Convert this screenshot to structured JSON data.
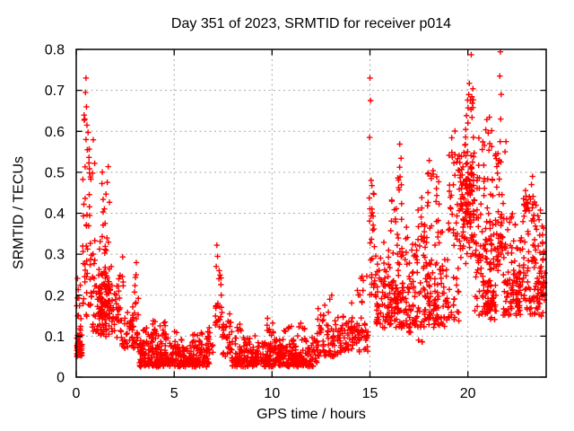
{
  "chart_data": {
    "type": "scatter",
    "title": "Day 351 of 2023, SRMTID for receiver p014",
    "xlabel": "GPS time / hours",
    "ylabel": "SRMTID / TECUs",
    "xlim": [
      0,
      24
    ],
    "ylim": [
      0,
      0.8
    ],
    "x_ticks": [
      {
        "v": 0,
        "label": "0"
      },
      {
        "v": 5,
        "label": "5"
      },
      {
        "v": 10,
        "label": "10"
      },
      {
        "v": 15,
        "label": "15"
      },
      {
        "v": 20,
        "label": "20"
      }
    ],
    "y_ticks": [
      {
        "v": 0.0,
        "label": "0"
      },
      {
        "v": 0.1,
        "label": "0.1"
      },
      {
        "v": 0.2,
        "label": "0.2"
      },
      {
        "v": 0.3,
        "label": "0.3"
      },
      {
        "v": 0.4,
        "label": "0.4"
      },
      {
        "v": 0.5,
        "label": "0.5"
      },
      {
        "v": 0.6,
        "label": "0.6"
      },
      {
        "v": 0.7,
        "label": "0.7"
      },
      {
        "v": 0.8,
        "label": "0.8"
      }
    ],
    "grid": true,
    "legend": "none",
    "marker": {
      "shape": "plus",
      "color": "#ff0000",
      "size": 7
    },
    "colors": {
      "background": "#ffffff",
      "axis": "#000000",
      "grid": "#a8a8a8",
      "text": "#000000",
      "points": "#ff0000"
    },
    "point_clusters": [
      {
        "x0": 0.02,
        "x1": 0.3,
        "y0": 0.05,
        "y1": 0.14,
        "n": 50,
        "bias": "low"
      },
      {
        "x0": 0.02,
        "x1": 0.3,
        "y0": 0.14,
        "y1": 0.26,
        "n": 10,
        "bias": "low"
      },
      {
        "x0": 0.3,
        "x1": 0.78,
        "y0": 0.14,
        "y1": 0.32,
        "n": 26,
        "bias": "uniform"
      },
      {
        "x0": 0.33,
        "x1": 0.72,
        "y0": 0.32,
        "y1": 0.5,
        "n": 13,
        "bias": "uniform"
      },
      {
        "x0": 0.38,
        "x1": 0.68,
        "y0": 0.5,
        "y1": 0.65,
        "n": 7,
        "bias": "uniform"
      },
      {
        "x0": 0.6,
        "x1": 0.95,
        "y0": 0.45,
        "y1": 0.6,
        "n": 6,
        "bias": "uniform"
      },
      {
        "x0": 0.75,
        "x1": 1.28,
        "y0": 0.1,
        "y1": 0.35,
        "n": 40,
        "bias": "low"
      },
      {
        "x0": 1.28,
        "x1": 1.7,
        "y0": 0.3,
        "y1": 0.52,
        "n": 18,
        "bias": "uniform"
      },
      {
        "x0": 1.1,
        "x1": 2.25,
        "y0": 0.08,
        "y1": 0.28,
        "n": 130,
        "bias": "center"
      },
      {
        "x0": 2.25,
        "x1": 3.2,
        "y0": 0.07,
        "y1": 0.2,
        "n": 60,
        "bias": "low"
      },
      {
        "x0": 2.35,
        "x1": 2.45,
        "y0": 0.22,
        "y1": 0.31,
        "n": 4,
        "bias": "uniform"
      },
      {
        "x0": 2.95,
        "x1": 3.1,
        "y0": 0.2,
        "y1": 0.285,
        "n": 5,
        "bias": "uniform"
      },
      {
        "x0": 3.2,
        "x1": 6.8,
        "y0": 0.025,
        "y1": 0.09,
        "n": 320,
        "bias": "low"
      },
      {
        "x0": 3.25,
        "x1": 3.9,
        "y0": 0.08,
        "y1": 0.13,
        "n": 15,
        "bias": "low"
      },
      {
        "x0": 3.9,
        "x1": 4.7,
        "y0": 0.09,
        "y1": 0.15,
        "n": 28,
        "bias": "low"
      },
      {
        "x0": 5.0,
        "x1": 6.6,
        "y0": 0.085,
        "y1": 0.12,
        "n": 12,
        "bias": "low"
      },
      {
        "x0": 6.6,
        "x1": 7.05,
        "y0": 0.06,
        "y1": 0.15,
        "n": 20,
        "bias": "low"
      },
      {
        "x0": 7.05,
        "x1": 7.45,
        "y0": 0.12,
        "y1": 0.28,
        "n": 22,
        "bias": "low"
      },
      {
        "x0": 7.45,
        "x1": 7.95,
        "y0": 0.05,
        "y1": 0.16,
        "n": 30,
        "bias": "low"
      },
      {
        "x0": 7.95,
        "x1": 12.3,
        "y0": 0.025,
        "y1": 0.105,
        "n": 380,
        "bias": "low"
      },
      {
        "x0": 8.2,
        "x1": 8.5,
        "y0": 0.1,
        "y1": 0.13,
        "n": 5,
        "bias": "uniform"
      },
      {
        "x0": 9.7,
        "x1": 10.1,
        "y0": 0.1,
        "y1": 0.15,
        "n": 10,
        "bias": "low"
      },
      {
        "x0": 10.6,
        "x1": 11.0,
        "y0": 0.1,
        "y1": 0.125,
        "n": 5,
        "bias": "uniform"
      },
      {
        "x0": 11.3,
        "x1": 11.7,
        "y0": 0.1,
        "y1": 0.135,
        "n": 6,
        "bias": "uniform"
      },
      {
        "x0": 12.3,
        "x1": 13.4,
        "y0": 0.05,
        "y1": 0.19,
        "n": 70,
        "bias": "low"
      },
      {
        "x0": 13.4,
        "x1": 14.9,
        "y0": 0.06,
        "y1": 0.2,
        "n": 90,
        "bias": "low"
      },
      {
        "x0": 14.35,
        "x1": 14.85,
        "y0": 0.2,
        "y1": 0.26,
        "n": 8,
        "bias": "uniform"
      },
      {
        "x0": 14.95,
        "x1": 15.3,
        "y0": 0.18,
        "y1": 0.47,
        "n": 30,
        "bias": "uniform"
      },
      {
        "x0": 15.3,
        "x1": 16.35,
        "y0": 0.12,
        "y1": 0.35,
        "n": 95,
        "bias": "low"
      },
      {
        "x0": 16.05,
        "x1": 16.35,
        "y0": 0.35,
        "y1": 0.44,
        "n": 8,
        "bias": "uniform"
      },
      {
        "x0": 16.35,
        "x1": 16.85,
        "y0": 0.12,
        "y1": 0.45,
        "n": 55,
        "bias": "low"
      },
      {
        "x0": 16.4,
        "x1": 16.7,
        "y0": 0.45,
        "y1": 0.575,
        "n": 9,
        "bias": "uniform"
      },
      {
        "x0": 16.85,
        "x1": 17.45,
        "y0": 0.1,
        "y1": 0.38,
        "n": 55,
        "bias": "low"
      },
      {
        "x0": 17.45,
        "x1": 17.65,
        "y0": 0.3,
        "y1": 0.44,
        "n": 10,
        "bias": "uniform"
      },
      {
        "x0": 17.45,
        "x1": 17.7,
        "y0": 0.085,
        "y1": 0.3,
        "n": 12,
        "bias": "low"
      },
      {
        "x0": 17.7,
        "x1": 18.7,
        "y0": 0.12,
        "y1": 0.45,
        "n": 110,
        "bias": "low"
      },
      {
        "x0": 17.95,
        "x1": 18.25,
        "y0": 0.45,
        "y1": 0.53,
        "n": 8,
        "bias": "uniform"
      },
      {
        "x0": 18.3,
        "x1": 18.55,
        "y0": 0.42,
        "y1": 0.5,
        "n": 6,
        "bias": "uniform"
      },
      {
        "x0": 18.7,
        "x1": 19.55,
        "y0": 0.12,
        "y1": 0.33,
        "n": 45,
        "bias": "low"
      },
      {
        "x0": 19.0,
        "x1": 19.55,
        "y0": 0.33,
        "y1": 0.62,
        "n": 30,
        "bias": "uniform"
      },
      {
        "x0": 19.55,
        "x1": 20.35,
        "y0": 0.25,
        "y1": 0.62,
        "n": 130,
        "bias": "center"
      },
      {
        "x0": 19.9,
        "x1": 20.3,
        "y0": 0.62,
        "y1": 0.72,
        "n": 14,
        "bias": "uniform"
      },
      {
        "x0": 20.35,
        "x1": 21.35,
        "y0": 0.15,
        "y1": 0.55,
        "n": 120,
        "bias": "low"
      },
      {
        "x0": 20.5,
        "x1": 21.25,
        "y0": 0.55,
        "y1": 0.645,
        "n": 12,
        "bias": "uniform"
      },
      {
        "x0": 20.9,
        "x1": 21.5,
        "y0": 0.12,
        "y1": 0.24,
        "n": 30,
        "bias": "center"
      },
      {
        "x0": 21.35,
        "x1": 21.8,
        "y0": 0.25,
        "y1": 0.56,
        "n": 40,
        "bias": "low"
      },
      {
        "x0": 21.4,
        "x1": 21.62,
        "y0": 0.5,
        "y1": 0.56,
        "n": 8,
        "bias": "center"
      },
      {
        "x0": 21.8,
        "x1": 22.6,
        "y0": 0.15,
        "y1": 0.45,
        "n": 85,
        "bias": "low"
      },
      {
        "x0": 22.6,
        "x1": 23.45,
        "y0": 0.15,
        "y1": 0.45,
        "n": 80,
        "bias": "low"
      },
      {
        "x0": 22.85,
        "x1": 23.35,
        "y0": 0.37,
        "y1": 0.46,
        "n": 14,
        "bias": "center"
      },
      {
        "x0": 23.45,
        "x1": 23.95,
        "y0": 0.14,
        "y1": 0.3,
        "n": 45,
        "bias": "center"
      },
      {
        "x0": 23.4,
        "x1": 23.9,
        "y0": 0.3,
        "y1": 0.45,
        "n": 20,
        "bias": "low"
      }
    ],
    "outlier_points": [
      [
        0.5,
        0.73
      ],
      [
        0.47,
        0.695
      ],
      [
        0.52,
        0.66
      ],
      [
        0.44,
        0.63
      ],
      [
        0.55,
        0.615
      ],
      [
        0.5,
        0.58
      ],
      [
        0.57,
        0.555
      ],
      [
        7.18,
        0.322
      ],
      [
        7.22,
        0.295
      ],
      [
        7.15,
        0.27
      ],
      [
        7.3,
        0.26
      ],
      [
        12.95,
        0.19
      ],
      [
        13.05,
        0.2
      ],
      [
        15.0,
        0.73
      ],
      [
        15.03,
        0.675
      ],
      [
        14.98,
        0.585
      ],
      [
        15.06,
        0.48
      ],
      [
        20.17,
        0.787
      ],
      [
        21.66,
        0.794
      ],
      [
        21.63,
        0.735
      ],
      [
        21.7,
        0.69
      ],
      [
        21.68,
        0.63
      ],
      [
        21.65,
        0.575
      ],
      [
        21.95,
        0.575
      ],
      [
        21.9,
        0.55
      ],
      [
        23.3,
        0.49
      ],
      [
        23.25,
        0.47
      ]
    ]
  }
}
